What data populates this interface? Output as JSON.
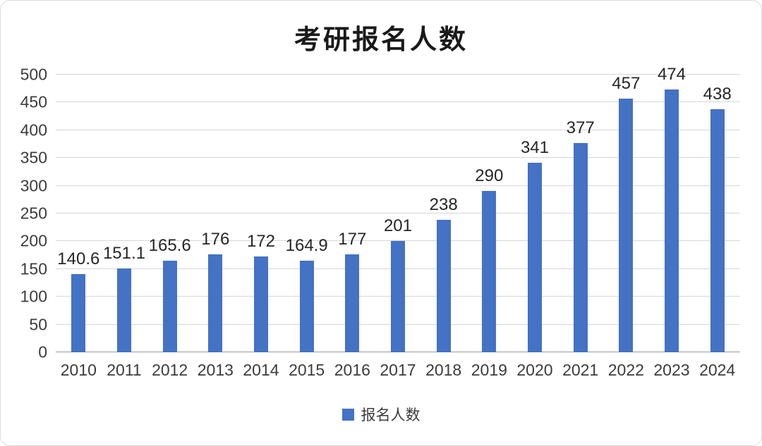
{
  "chart_data": {
    "type": "bar",
    "title": "考研报名人数",
    "categories": [
      "2010",
      "2011",
      "2012",
      "2013",
      "2014",
      "2015",
      "2016",
      "2017",
      "2018",
      "2019",
      "2020",
      "2021",
      "2022",
      "2023",
      "2024"
    ],
    "values": [
      140.6,
      151.1,
      165.6,
      176,
      172,
      164.9,
      177,
      201,
      238,
      290,
      341,
      377,
      457,
      474,
      438
    ],
    "xlabel": "",
    "ylabel": "",
    "ylim": [
      0,
      500
    ],
    "yticks": [
      0,
      50,
      100,
      150,
      200,
      250,
      300,
      350,
      400,
      450,
      500
    ],
    "grid": "horizontal",
    "legend_position": "bottom",
    "legend": "报名人数",
    "bar_color": "#4472c4",
    "gridline_color": "#d6d6d6",
    "axis_line_color": "#9a9a9a"
  }
}
